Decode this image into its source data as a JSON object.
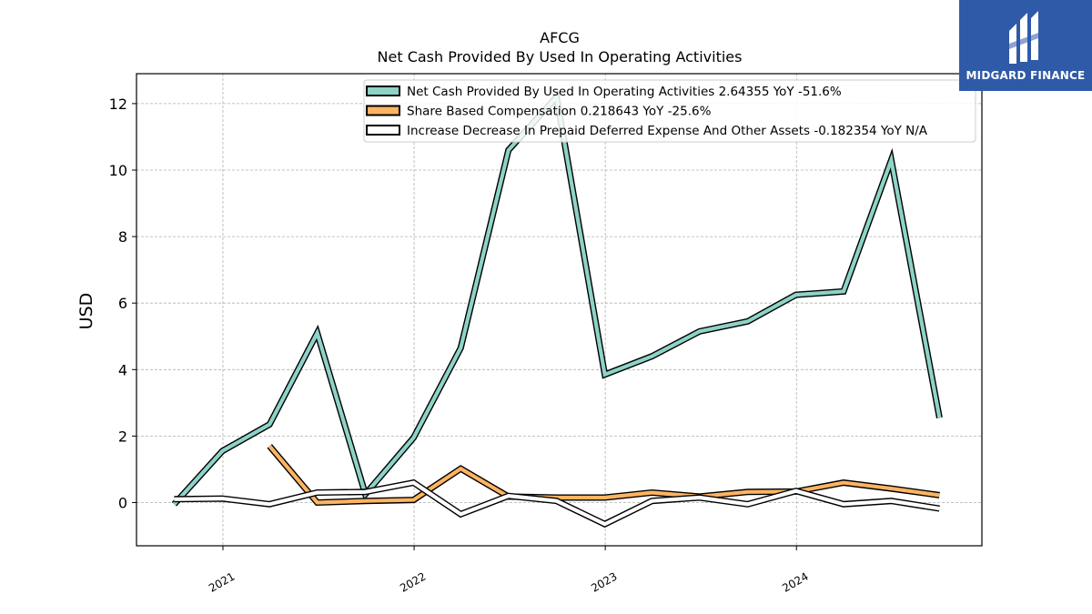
{
  "brand": {
    "name": "MIDGARD FINANCE",
    "bg_color": "#2f5aa8",
    "icon": "midgard-logo-icon"
  },
  "chart_data": {
    "type": "line",
    "title": "AFCG",
    "subtitle": "Net Cash Provided By Used In Operating Activities",
    "ylabel": "USD",
    "xlabel": "",
    "ylim": [
      -1.3,
      12.9
    ],
    "yticks": [
      0,
      2,
      4,
      6,
      8,
      10,
      12
    ],
    "xlim": [
      "2020-07-20",
      "2024-12-20"
    ],
    "xticks": [
      {
        "date": "2021-01-01",
        "label": "2021"
      },
      {
        "date": "2022-01-01",
        "label": "2022"
      },
      {
        "date": "2023-01-01",
        "label": "2023"
      },
      {
        "date": "2024-01-01",
        "label": "2024"
      }
    ],
    "grid": true,
    "legend_position": "top-right",
    "series": [
      {
        "name": "Net Cash Provided By Used In Operating Activities",
        "legend": "Net Cash Provided By Used In Operating Activities  2.64355 YoY -51.6%",
        "color": "#8dd3c7",
        "points": [
          [
            "2020-09-30",
            -0.05
          ],
          [
            "2020-12-31",
            1.55
          ],
          [
            "2021-03-31",
            2.35
          ],
          [
            "2021-06-30",
            5.1
          ],
          [
            "2021-09-30",
            0.25
          ],
          [
            "2021-12-31",
            1.95
          ],
          [
            "2022-03-31",
            4.65
          ],
          [
            "2022-06-30",
            10.6
          ],
          [
            "2022-09-30",
            12.2
          ],
          [
            "2022-12-31",
            3.85
          ],
          [
            "2023-03-31",
            4.4
          ],
          [
            "2023-06-30",
            5.15
          ],
          [
            "2023-09-30",
            5.45
          ],
          [
            "2023-12-31",
            6.25
          ],
          [
            "2024-03-31",
            6.35
          ],
          [
            "2024-06-30",
            10.3
          ],
          [
            "2024-09-30",
            2.55
          ]
        ]
      },
      {
        "name": "Share Based Compensation",
        "legend": "Share Based Compensation  0.218643 YoY -25.6%",
        "color": "#fdb462",
        "points": [
          [
            "2021-03-31",
            1.7
          ],
          [
            "2021-06-30",
            0.0
          ],
          [
            "2021-09-30",
            0.05
          ],
          [
            "2021-12-31",
            0.08
          ],
          [
            "2022-03-31",
            1.02
          ],
          [
            "2022-06-30",
            0.18
          ],
          [
            "2022-09-30",
            0.15
          ],
          [
            "2022-12-31",
            0.15
          ],
          [
            "2023-03-31",
            0.3
          ],
          [
            "2023-06-30",
            0.18
          ],
          [
            "2023-09-30",
            0.32
          ],
          [
            "2023-12-31",
            0.33
          ],
          [
            "2024-03-31",
            0.6
          ],
          [
            "2024-06-30",
            0.42
          ],
          [
            "2024-09-30",
            0.22
          ]
        ]
      },
      {
        "name": "Increase Decrease In Prepaid Deferred Expense And Other Assets",
        "legend": "Increase Decrease In Prepaid Deferred Expense And Other Assets  -0.182354 YoY N/A",
        "color": "#ffffff",
        "points": [
          [
            "2020-09-30",
            0.1
          ],
          [
            "2020-12-31",
            0.12
          ],
          [
            "2021-03-31",
            -0.05
          ],
          [
            "2021-06-30",
            0.3
          ],
          [
            "2021-09-30",
            0.32
          ],
          [
            "2021-12-31",
            0.6
          ],
          [
            "2022-03-31",
            -0.35
          ],
          [
            "2022-06-30",
            0.2
          ],
          [
            "2022-09-30",
            0.05
          ],
          [
            "2022-12-31",
            -0.65
          ],
          [
            "2023-03-31",
            0.05
          ],
          [
            "2023-06-30",
            0.15
          ],
          [
            "2023-09-30",
            -0.05
          ],
          [
            "2023-12-31",
            0.35
          ],
          [
            "2024-03-31",
            -0.05
          ],
          [
            "2024-06-30",
            0.05
          ],
          [
            "2024-09-30",
            -0.18
          ]
        ]
      }
    ]
  }
}
